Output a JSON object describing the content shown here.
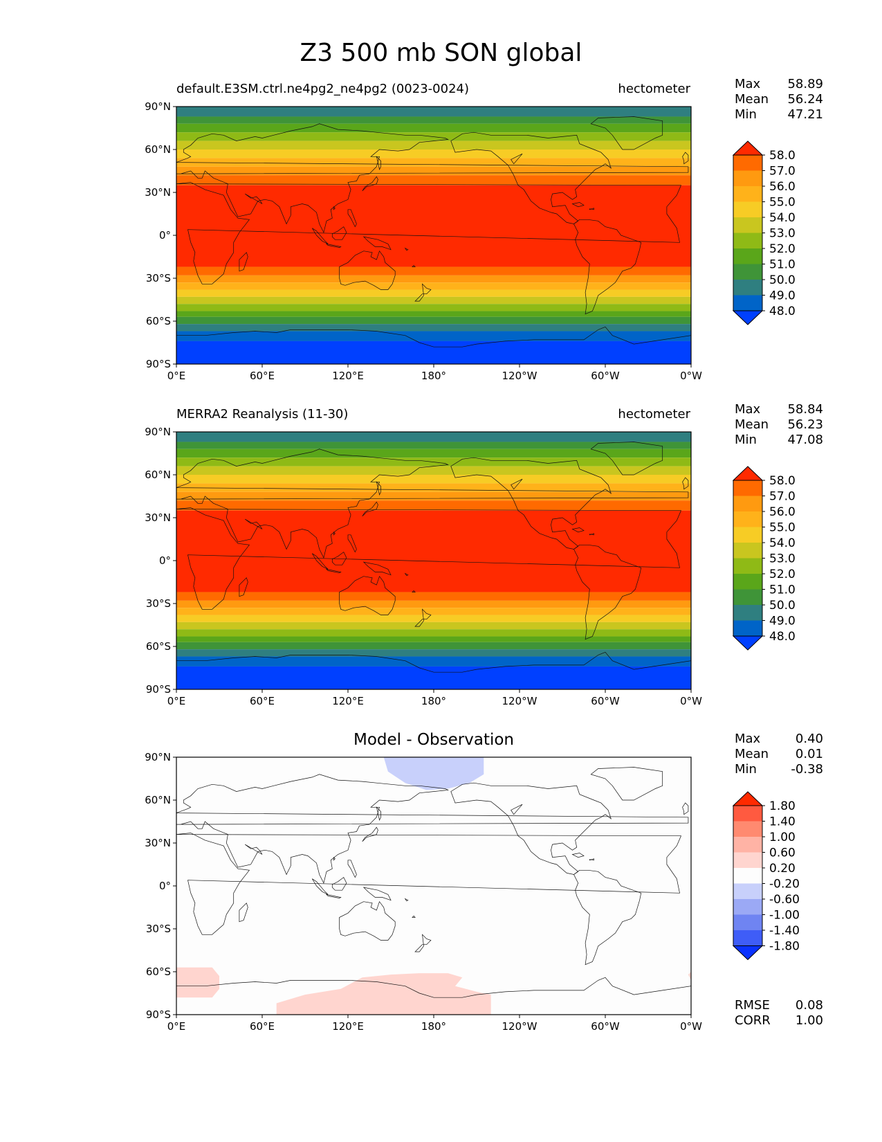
{
  "figure": {
    "title": "Z3 500 mb SON global"
  },
  "axes": {
    "lat_ticks": [
      "90°N",
      "60°N",
      "30°N",
      "0°",
      "30°S",
      "60°S",
      "90°S"
    ],
    "lon_ticks": [
      "0°E",
      "60°E",
      "120°E",
      "180°",
      "120°W",
      "60°W",
      "0°W"
    ]
  },
  "panels": [
    {
      "kind": "field",
      "title_left": "default.E3SM.ctrl.ne4pg2_ne4pg2 (0023-0024)",
      "title_right": "hectometer",
      "stats": [
        {
          "label": "Max",
          "value": "58.89"
        },
        {
          "label": "Mean",
          "value": "56.24"
        },
        {
          "label": "Min",
          "value": "47.21"
        }
      ]
    },
    {
      "kind": "field",
      "title_left": "MERRA2 Reanalysis (11-30)",
      "title_right": "hectometer",
      "stats": [
        {
          "label": "Max",
          "value": "58.84"
        },
        {
          "label": "Mean",
          "value": "56.23"
        },
        {
          "label": "Min",
          "value": "47.08"
        }
      ]
    },
    {
      "kind": "diff",
      "title_center": "Model - Observation",
      "stats": [
        {
          "label": "Max",
          "value": "0.40"
        },
        {
          "label": "Mean",
          "value": "0.01"
        },
        {
          "label": "Min",
          "value": "-0.38"
        }
      ],
      "extra_stats": [
        {
          "label": "RMSE",
          "value": "0.08"
        },
        {
          "label": "CORR",
          "value": "1.00"
        }
      ]
    }
  ],
  "colorbars": {
    "field": {
      "levels": [
        "58.0",
        "57.0",
        "56.0",
        "55.0",
        "54.0",
        "53.0",
        "52.0",
        "51.0",
        "50.0",
        "49.0",
        "48.0"
      ],
      "colors": [
        "#ff2a00",
        "#ff6a00",
        "#ff9a10",
        "#ffb21a",
        "#f7cc25",
        "#c9c61f",
        "#8fba16",
        "#5aa61a",
        "#3f9438",
        "#2f7f80",
        "#0064c8",
        "#0040ff"
      ]
    },
    "diff": {
      "levels": [
        "1.80",
        "1.40",
        "1.00",
        "0.60",
        "0.20",
        "-0.20",
        "-0.60",
        "-1.00",
        "-1.40",
        "-1.80"
      ],
      "colors": [
        "#ff2a00",
        "#ff5a40",
        "#ff8a70",
        "#ffb3a5",
        "#ffd5cf",
        "#fdfdfd",
        "#c8d0fb",
        "#9ba9f5",
        "#6f84f2",
        "#3f5df7",
        "#0a32ff"
      ]
    }
  }
}
